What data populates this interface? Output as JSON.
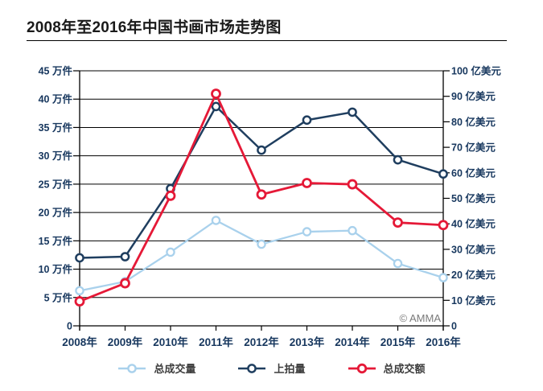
{
  "title": "2008年至2016年中国书画市场走势图",
  "copyright": "© AMMA",
  "chart_data": {
    "type": "line",
    "title": "2008年至2016年中国书画市场走势图",
    "categories": [
      "2008年",
      "2009年",
      "2010年",
      "2011年",
      "2012年",
      "2013年",
      "2014年",
      "2015年",
      "2016年"
    ],
    "series": [
      {
        "id": "total-volume",
        "name": "总成交量",
        "axis": "left",
        "unit": "万件",
        "color": "#a9d1ec",
        "marker": "open-circle",
        "values": [
          6.2,
          7.8,
          13,
          18.6,
          14.4,
          16.6,
          16.8,
          11,
          8.5
        ]
      },
      {
        "id": "lots-offered",
        "name": "上拍量",
        "axis": "left",
        "unit": "万件",
        "color": "#1f3e5f",
        "marker": "open-circle",
        "values": [
          12,
          12.2,
          24.2,
          38.7,
          31,
          36.3,
          37.7,
          29.3,
          26.8
        ]
      },
      {
        "id": "total-value",
        "name": "总成交额",
        "axis": "right",
        "unit": "亿美元",
        "color": "#e51937",
        "marker": "open-circle",
        "values": [
          9.6,
          16.7,
          51,
          91,
          51.5,
          56,
          55.5,
          40.5,
          39.5
        ]
      }
    ],
    "left_axis": {
      "unit": "万件",
      "min": 0,
      "max": 45,
      "step": 5,
      "tick_labels": [
        "45 万件",
        "40 万件",
        "35 万件",
        "30 万件",
        "25 万件",
        "20 万件",
        "15 万件",
        "10 万件",
        "5 万件",
        "0"
      ]
    },
    "right_axis": {
      "unit": "亿美元",
      "min": 0,
      "max": 100,
      "step": 10,
      "tick_labels": [
        "100 亿美元",
        "90 亿美元",
        "80 亿美元",
        "70 亿美元",
        "60 亿美元",
        "50 亿美元",
        "40 亿美元",
        "30 亿美元",
        "20 亿美元",
        "10 亿美元",
        "0"
      ]
    },
    "grid": "horizontal",
    "legend_position": "bottom",
    "tick_label_color": "#17375e",
    "grid_color": "#000000"
  }
}
